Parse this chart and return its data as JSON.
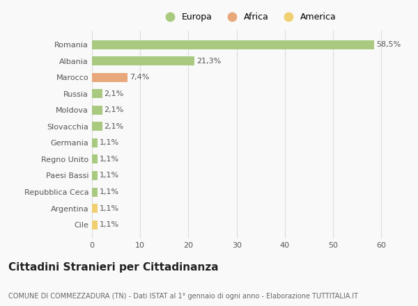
{
  "categories": [
    "Romania",
    "Albania",
    "Marocco",
    "Russia",
    "Moldova",
    "Slovacchia",
    "Germania",
    "Regno Unito",
    "Paesi Bassi",
    "Repubblica Ceca",
    "Argentina",
    "Cile"
  ],
  "values": [
    58.5,
    21.3,
    7.4,
    2.1,
    2.1,
    2.1,
    1.1,
    1.1,
    1.1,
    1.1,
    1.1,
    1.1
  ],
  "labels": [
    "58,5%",
    "21,3%",
    "7,4%",
    "2,1%",
    "2,1%",
    "2,1%",
    "1,1%",
    "1,1%",
    "1,1%",
    "1,1%",
    "1,1%",
    "1,1%"
  ],
  "colors": [
    "#a8c97f",
    "#a8c97f",
    "#e8a87c",
    "#a8c97f",
    "#a8c97f",
    "#a8c97f",
    "#a8c97f",
    "#a8c97f",
    "#a8c97f",
    "#a8c97f",
    "#f0d070",
    "#f0d070"
  ],
  "legend_labels": [
    "Europa",
    "Africa",
    "America"
  ],
  "legend_colors": [
    "#a8c97f",
    "#e8a87c",
    "#f0d070"
  ],
  "title": "Cittadini Stranieri per Cittadinanza",
  "subtitle": "COMUNE DI COMMEZZADURA (TN) - Dati ISTAT al 1° gennaio di ogni anno - Elaborazione TUTTITALIA.IT",
  "xlim": [
    0,
    65
  ],
  "xticks": [
    0,
    10,
    20,
    30,
    40,
    50,
    60
  ],
  "bg_color": "#f9f9f9",
  "grid_color": "#dddddd",
  "title_fontsize": 11,
  "subtitle_fontsize": 7,
  "tick_fontsize": 8,
  "label_fontsize": 8
}
